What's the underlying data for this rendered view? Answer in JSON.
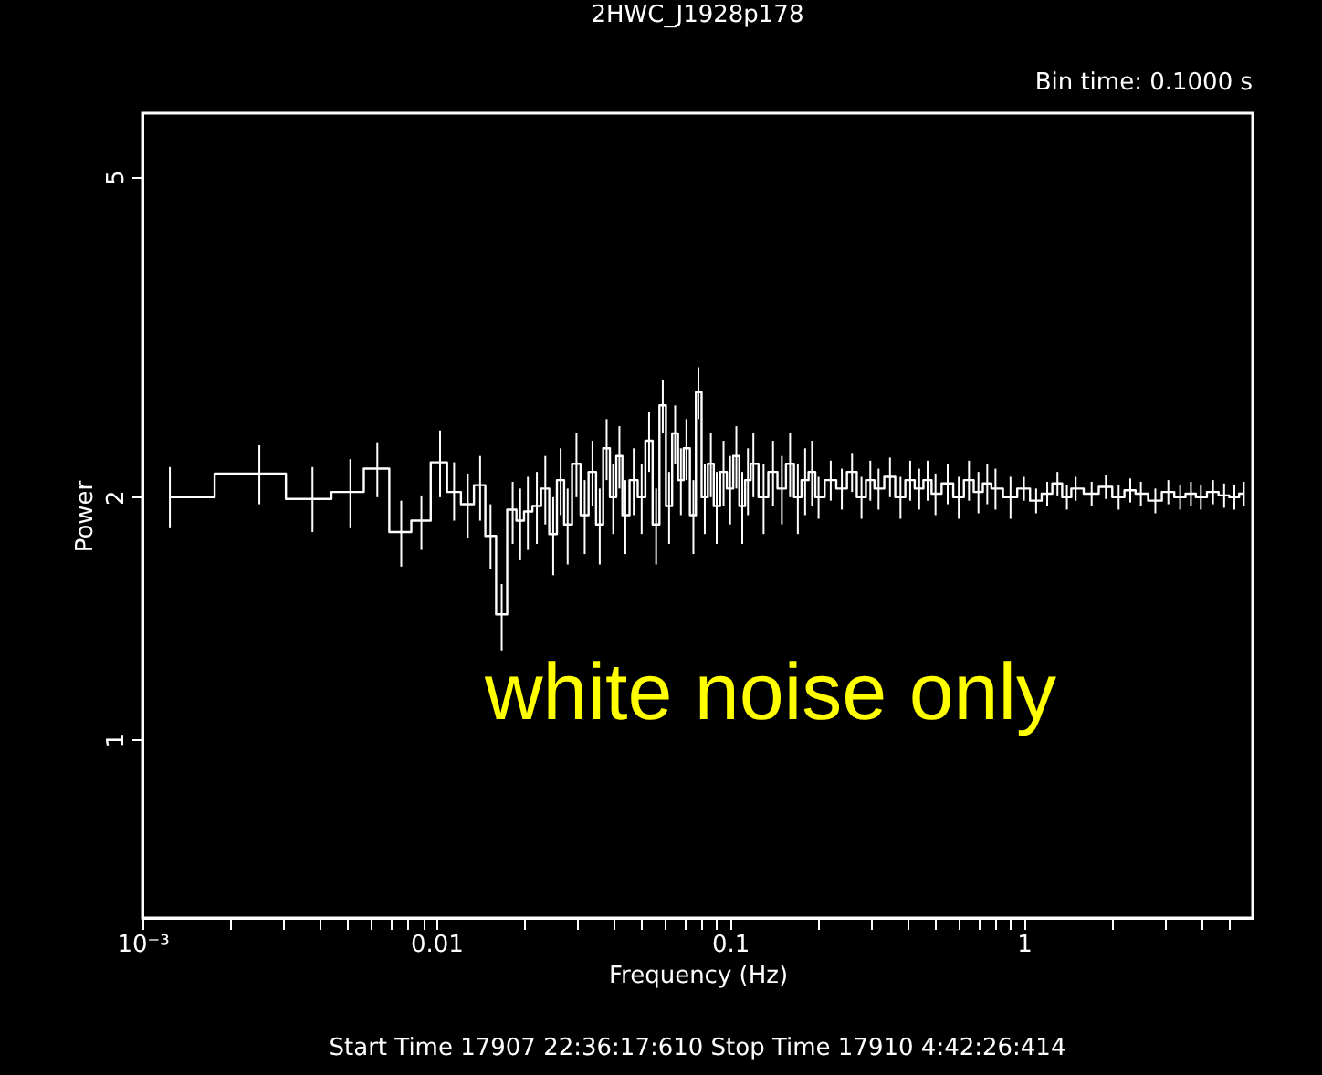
{
  "chart_data": {
    "type": "step",
    "title": "2HWC_J1928p178",
    "xlabel": "Frequency (Hz)",
    "ylabel": "Power",
    "annotations": [
      "Bin time:    0.1000     s",
      "Start Time 17907 22:36:17:610     Stop Time 17910   4:42:26:414",
      "white noise only"
    ],
    "log": "xy",
    "grid": false,
    "marker": "none",
    "line_style": "solid",
    "xlim": [
      0.001,
      6
    ],
    "ylim": [
      0.6,
      6
    ],
    "xticks": [
      {
        "value": 0.001,
        "label": "10⁻³"
      },
      {
        "value": 0.002,
        "label": null
      },
      {
        "value": 0.003,
        "label": null
      },
      {
        "value": 0.004,
        "label": null
      },
      {
        "value": 0.005,
        "label": null
      },
      {
        "value": 0.006,
        "label": null
      },
      {
        "value": 0.007,
        "label": null
      },
      {
        "value": 0.008,
        "label": null
      },
      {
        "value": 0.009,
        "label": null
      },
      0.01,
      {
        "value": 0.02,
        "label": null
      },
      {
        "value": 0.03,
        "label": null
      },
      {
        "value": 0.04,
        "label": null
      },
      {
        "value": 0.05,
        "label": null
      },
      {
        "value": 0.06,
        "label": null
      },
      {
        "value": 0.07,
        "label": null
      },
      {
        "value": 0.08,
        "label": null
      },
      {
        "value": 0.09,
        "label": null
      },
      0.1,
      {
        "value": 0.2,
        "label": null
      },
      {
        "value": 0.3,
        "label": null
      },
      {
        "value": 0.4,
        "label": null
      },
      {
        "value": 0.5,
        "label": null
      },
      {
        "value": 0.6,
        "label": null
      },
      {
        "value": 0.7,
        "label": null
      },
      {
        "value": 0.8,
        "label": null
      },
      {
        "value": 0.9,
        "label": null
      },
      1,
      {
        "value": 2,
        "label": null
      },
      {
        "value": 3,
        "label": null
      },
      {
        "value": 4,
        "label": null
      },
      {
        "value": 5,
        "label": null
      }
    ],
    "yticks": [
      1,
      2,
      5
    ],
    "series": [
      {
        "color": "#ffffff",
        "x": [
          0.00124,
          0.0025,
          0.00379,
          0.0051,
          0.0063,
          0.0076,
          0.0089,
          0.0103,
          0.0115,
          0.0128,
          0.0141,
          0.0153,
          0.0167,
          0.0182,
          0.0193,
          0.0205,
          0.022,
          0.0235,
          0.025,
          0.0265,
          0.028,
          0.03,
          0.032,
          0.034,
          0.036,
          0.038,
          0.04,
          0.042,
          0.044,
          0.047,
          0.05,
          0.053,
          0.056,
          0.059,
          0.062,
          0.065,
          0.068,
          0.071,
          0.075,
          0.078,
          0.082,
          0.086,
          0.09,
          0.095,
          0.1,
          0.105,
          0.11,
          0.115,
          0.12,
          0.13,
          0.14,
          0.15,
          0.16,
          0.17,
          0.18,
          0.19,
          0.2,
          0.22,
          0.24,
          0.26,
          0.28,
          0.3,
          0.32,
          0.35,
          0.38,
          0.41,
          0.44,
          0.47,
          0.5,
          0.55,
          0.6,
          0.65,
          0.7,
          0.75,
          0.8,
          0.9,
          1.0,
          1.1,
          1.2,
          1.3,
          1.4,
          1.5,
          1.7,
          1.9,
          2.1,
          2.3,
          2.5,
          2.8,
          3.1,
          3.4,
          3.7,
          4.0,
          4.4,
          4.8,
          5.2,
          5.6
        ],
        "values": [
          2.0,
          2.14,
          1.99,
          2.03,
          2.17,
          1.81,
          1.87,
          2.21,
          2.03,
          1.96,
          2.07,
          1.79,
          1.43,
          1.93,
          1.87,
          1.92,
          1.95,
          2.05,
          1.8,
          2.1,
          1.85,
          2.2,
          1.9,
          2.15,
          1.85,
          2.3,
          2.0,
          2.25,
          1.9,
          2.1,
          2.0,
          2.35,
          1.85,
          2.6,
          1.95,
          2.4,
          2.1,
          2.3,
          1.9,
          2.7,
          2.0,
          2.2,
          1.95,
          2.15,
          2.05,
          2.25,
          1.95,
          2.1,
          2.2,
          2.0,
          2.15,
          2.05,
          2.2,
          2.0,
          2.1,
          2.15,
          2.0,
          2.1,
          2.05,
          2.15,
          2.0,
          2.1,
          2.05,
          2.12,
          2.0,
          2.1,
          2.05,
          2.1,
          2.02,
          2.08,
          2.0,
          2.1,
          2.03,
          2.08,
          2.05,
          2.0,
          2.05,
          1.98,
          2.02,
          2.08,
          2.0,
          2.05,
          2.02,
          2.06,
          2.0,
          2.04,
          2.02,
          1.98,
          2.03,
          2.0,
          2.02,
          2.0,
          2.03,
          2.01,
          2.0,
          2.02
        ],
        "errors": [
          [
            1.83,
            2.18
          ],
          [
            1.96,
            2.32
          ],
          [
            1.81,
            2.18
          ],
          [
            1.83,
            2.23
          ],
          [
            2.0,
            2.34
          ],
          [
            1.64,
            1.98
          ],
          [
            1.72,
            2.01
          ],
          [
            2.0,
            2.42
          ],
          [
            1.87,
            2.21
          ],
          [
            1.78,
            2.14
          ],
          [
            1.87,
            2.25
          ],
          [
            1.63,
            1.96
          ],
          [
            1.29,
            1.56
          ],
          [
            1.75,
            2.09
          ],
          [
            1.67,
            2.05
          ],
          [
            1.72,
            2.12
          ],
          0.2,
          0.2,
          0.2,
          0.2,
          0.2,
          0.2,
          0.2,
          0.2,
          0.2,
          0.2,
          0.2,
          0.2,
          0.2,
          0.2,
          0.2,
          0.2,
          0.2,
          0.2,
          0.2,
          0.2,
          0.2,
          0.2,
          0.2,
          0.2,
          0.2,
          0.2,
          0.2,
          0.2,
          0.2,
          0.2,
          0.2,
          0.2,
          0.2,
          0.2,
          0.2,
          0.2,
          0.2,
          0.2,
          0.2,
          0.2,
          0.12,
          0.12,
          0.12,
          0.12,
          0.12,
          0.12,
          0.12,
          0.12,
          0.12,
          0.12,
          0.12,
          0.12,
          0.12,
          0.12,
          0.12,
          0.12,
          0.12,
          0.12,
          0.12,
          0.12,
          0.07,
          0.07,
          0.07,
          0.07,
          0.07,
          0.07,
          0.07,
          0.07,
          0.07,
          0.07,
          0.07,
          0.07,
          0.07,
          0.07,
          0.07,
          0.07,
          0.07,
          0.07,
          0.07,
          0.07
        ]
      }
    ]
  }
}
